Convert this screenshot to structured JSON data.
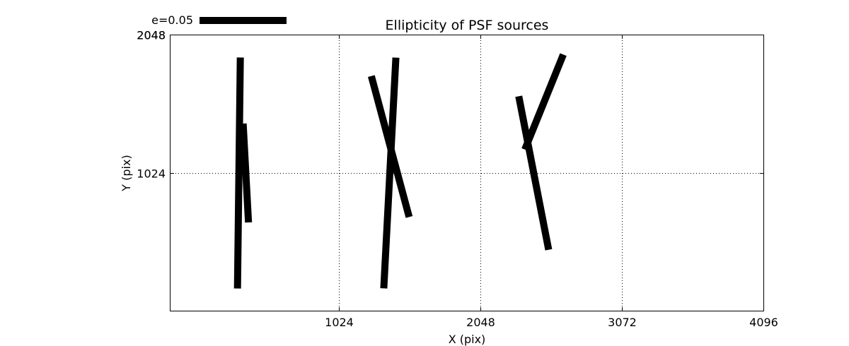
{
  "chart_data": {
    "type": "scatter",
    "subtype": "whisker-plot",
    "title": "Ellipticity of PSF sources",
    "xlabel": "X (pix)",
    "ylabel": "Y (pix)",
    "xlim": [
      -200,
      4100
    ],
    "ylim": [
      0,
      2048
    ],
    "x_ticks": [
      1024,
      2048,
      3072,
      4096
    ],
    "y_ticks": [
      1024,
      2048
    ],
    "y_tick_labels": [
      "1024",
      "2048"
    ],
    "y_tick_label_overlap_top": "2048",
    "grid": true,
    "grid_style": "dotted",
    "legend": {
      "label": "e=0.05",
      "placement": "top-left, above plot",
      "length_e": 0.05
    },
    "whisker_color": "#000000",
    "whiskers": [
      {
        "x": 300,
        "y": 1024,
        "e": 0.133,
        "angle_deg": 89.3
      },
      {
        "x": 350,
        "y": 1024,
        "e": 0.057,
        "angle_deg": 93.1
      },
      {
        "x": 1392,
        "y": 1024,
        "e": 0.133,
        "angle_deg": 87.0
      },
      {
        "x": 1395,
        "y": 1220,
        "e": 0.084,
        "angle_deg": 105.0
      },
      {
        "x": 2433,
        "y": 1024,
        "e": 0.09,
        "angle_deg": 101.0
      },
      {
        "x": 2508,
        "y": 1549,
        "e": 0.059,
        "angle_deg": 68.0
      }
    ]
  }
}
